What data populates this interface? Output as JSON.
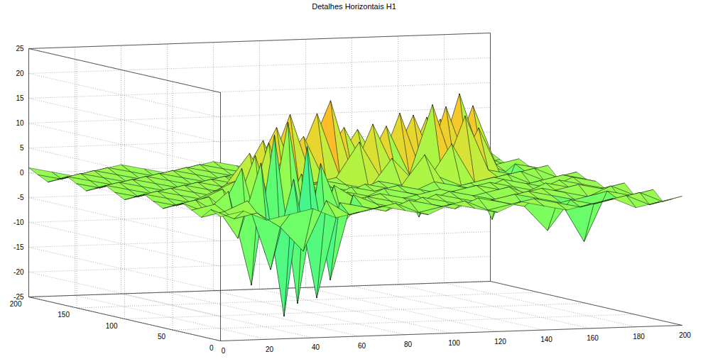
{
  "chart_data": {
    "type": "surface",
    "title": "Detalhes Horizontais H1",
    "x": [
      0,
      10,
      20,
      30,
      40,
      50,
      60,
      70,
      80,
      90,
      100,
      110,
      120,
      130,
      140,
      150,
      160,
      170,
      180,
      190,
      200
    ],
    "y": [
      0,
      10,
      20,
      30,
      40,
      50,
      60,
      70,
      80,
      90,
      100,
      110,
      120,
      130,
      140,
      150,
      160,
      170,
      180,
      190,
      200
    ],
    "z": [
      [
        0,
        1,
        -1,
        0,
        1,
        -1,
        0,
        1,
        0,
        -1,
        1,
        0,
        -1,
        1,
        0,
        -1,
        0,
        1,
        -1,
        0,
        1
      ],
      [
        1,
        -1,
        0,
        -3,
        -8,
        2,
        -1,
        0,
        1,
        -1,
        0,
        1,
        -1,
        0,
        1,
        0,
        -1,
        0,
        1,
        -1,
        0
      ],
      [
        -1,
        0,
        2,
        -12,
        6,
        -18,
        1,
        0,
        -1,
        1,
        0,
        -1,
        1,
        0,
        -1,
        -6,
        0,
        -1,
        0,
        1,
        -1
      ],
      [
        0,
        1,
        -6,
        9,
        -22,
        12,
        -15,
        2,
        0,
        -1,
        1,
        0,
        -1,
        0,
        1,
        0,
        -1,
        -9,
        1,
        0,
        1
      ],
      [
        1,
        -1,
        3,
        -16,
        14,
        -20,
        8,
        -4,
        1,
        0,
        -1,
        1,
        0,
        -1,
        0,
        1,
        0,
        -1,
        0,
        -1,
        0
      ],
      [
        0,
        1,
        -2,
        7,
        -10,
        16,
        -12,
        3,
        0,
        1,
        0,
        -1,
        1,
        0,
        -1,
        0,
        1,
        0,
        -1,
        1,
        -1
      ],
      [
        -1,
        0,
        1,
        -3,
        9,
        -6,
        5,
        -2,
        1,
        0,
        -1,
        0,
        1,
        -1,
        0,
        1,
        -1,
        0,
        1,
        0,
        1
      ],
      [
        0,
        -1,
        0,
        2,
        -4,
        11,
        -3,
        1,
        0,
        -1,
        1,
        0,
        -1,
        0,
        1,
        0,
        -1,
        1,
        0,
        -1,
        0
      ],
      [
        1,
        0,
        -1,
        1,
        3,
        -2,
        7,
        0,
        -1,
        1,
        0,
        1,
        0,
        -1,
        0,
        1,
        0,
        -1,
        1,
        0,
        -1
      ],
      [
        0,
        1,
        0,
        -1,
        2,
        8,
        -1,
        1,
        0,
        -1,
        1,
        0,
        -1,
        1,
        0,
        -1,
        1,
        0,
        -1,
        1,
        0
      ],
      [
        -1,
        0,
        1,
        0,
        -1,
        2,
        10,
        -2,
        1,
        0,
        -1,
        1,
        0,
        6,
        -1,
        0,
        1,
        -1,
        0,
        1,
        0
      ],
      [
        0,
        -1,
        0,
        1,
        0,
        -1,
        3,
        12,
        -1,
        1,
        0,
        -1,
        5,
        0,
        1,
        -1,
        0,
        1,
        -1,
        0,
        1
      ],
      [
        1,
        0,
        -1,
        0,
        1,
        0,
        -1,
        2,
        14,
        0,
        1,
        8,
        0,
        -1,
        0,
        7,
        -1,
        0,
        1,
        -1,
        0
      ],
      [
        0,
        1,
        0,
        -1,
        0,
        1,
        0,
        -1,
        3,
        9,
        -1,
        0,
        11,
        1,
        -8,
        0,
        12,
        1,
        0,
        1,
        -1
      ],
      [
        -1,
        0,
        1,
        0,
        -1,
        0,
        1,
        0,
        -1,
        2,
        13,
        0,
        1,
        10,
        0,
        14,
        0,
        9,
        -1,
        0,
        1
      ],
      [
        0,
        -1,
        0,
        1,
        0,
        -1,
        0,
        1,
        0,
        -1,
        4,
        15,
        -1,
        0,
        12,
        -1,
        13,
        0,
        -10,
        1,
        0
      ],
      [
        1,
        0,
        -1,
        0,
        1,
        0,
        -1,
        0,
        1,
        0,
        -1,
        2,
        9,
        0,
        1,
        11,
        0,
        15,
        1,
        -1,
        0
      ],
      [
        0,
        1,
        0,
        -1,
        0,
        1,
        0,
        -1,
        0,
        1,
        0,
        -1,
        1,
        8,
        0,
        -1,
        10,
        0,
        12,
        0,
        1
      ],
      [
        -1,
        0,
        1,
        0,
        -1,
        0,
        1,
        0,
        -1,
        0,
        1,
        0,
        -1,
        1,
        6,
        0,
        1,
        9,
        0,
        1,
        -1
      ],
      [
        0,
        -1,
        0,
        1,
        0,
        -1,
        0,
        1,
        0,
        -1,
        0,
        1,
        0,
        -1,
        1,
        0,
        -1,
        1,
        0,
        -1,
        0
      ],
      [
        1,
        0,
        -1,
        0,
        1,
        0,
        -1,
        0,
        1,
        0,
        -1,
        0,
        1,
        0,
        -1,
        1,
        0,
        -1,
        1,
        0,
        1
      ]
    ],
    "xlim": [
      0,
      200
    ],
    "xticks": [
      0,
      20,
      40,
      60,
      80,
      100,
      120,
      140,
      160,
      180,
      200
    ],
    "ylim": [
      0,
      200
    ],
    "yticks": [
      0,
      50,
      100,
      150,
      200
    ],
    "zlim": [
      -25,
      25
    ],
    "zticks": [
      -25,
      -20,
      -15,
      -10,
      -5,
      0,
      5,
      10,
      15,
      20,
      25
    ],
    "grid": true
  }
}
